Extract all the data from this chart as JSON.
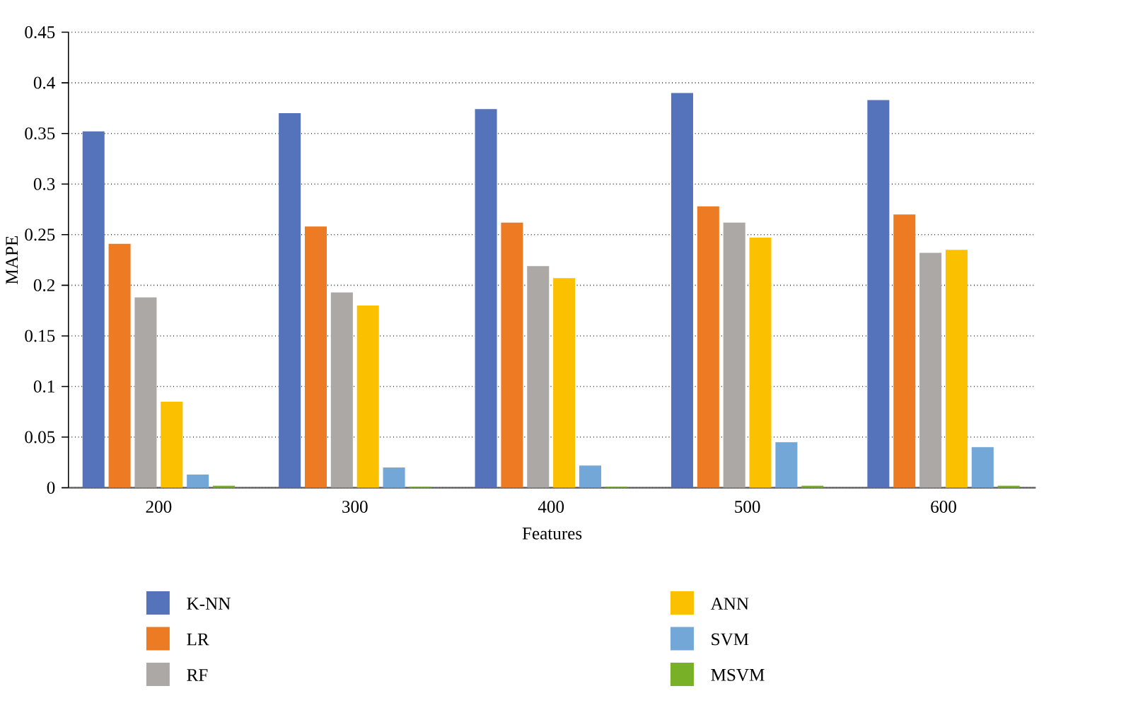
{
  "chart_data": {
    "type": "bar",
    "xlabel": "Features",
    "ylabel": "MAPE",
    "categories": [
      "200",
      "300",
      "400",
      "500",
      "600"
    ],
    "series": [
      {
        "name": "K-NN",
        "color": "#5573ba",
        "values": [
          0.352,
          0.37,
          0.374,
          0.39,
          0.383
        ]
      },
      {
        "name": "LR",
        "color": "#ed7b23",
        "values": [
          0.241,
          0.258,
          0.262,
          0.278,
          0.27
        ]
      },
      {
        "name": "RF",
        "color": "#aba8a6",
        "values": [
          0.188,
          0.193,
          0.219,
          0.262,
          0.232
        ]
      },
      {
        "name": "ANN",
        "color": "#fbc000",
        "values": [
          0.085,
          0.18,
          0.207,
          0.247,
          0.235
        ]
      },
      {
        "name": "SVM",
        "color": "#72a7d8",
        "values": [
          0.013,
          0.02,
          0.022,
          0.045,
          0.04
        ]
      },
      {
        "name": "MSVM",
        "color": "#78b027",
        "values": [
          0.002,
          0.001,
          0.001,
          0.002,
          0.002
        ]
      }
    ],
    "ylim": [
      0,
      0.45
    ],
    "yticks": [
      0,
      0.05,
      0.1,
      0.15,
      0.2,
      0.25,
      0.3,
      0.35,
      0.4,
      0.45
    ],
    "grid": "y",
    "legend": "bottom"
  }
}
